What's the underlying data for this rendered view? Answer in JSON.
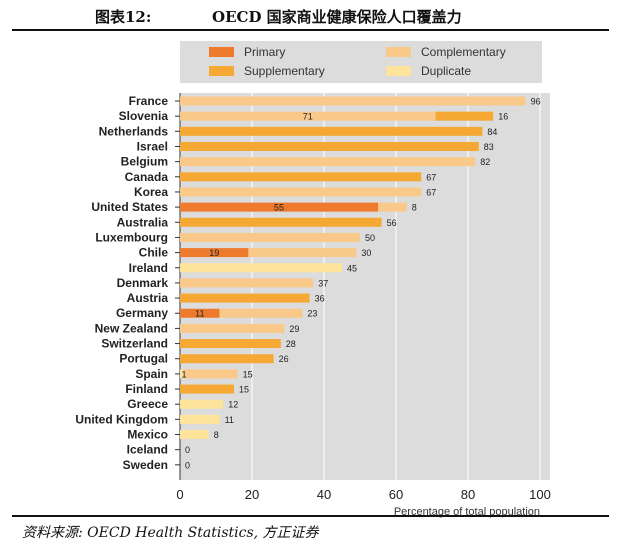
{
  "header": {
    "figure_label": "图表12:",
    "title": "OECD 国家商业健康保险人口覆盖力"
  },
  "footer": {
    "source": "资料来源: OECD Health Statistics, 方正证券"
  },
  "chart_data": {
    "type": "bar",
    "orientation": "horizontal",
    "stacked": true,
    "xlabel": "Percentage of total population",
    "xlim": [
      0,
      100
    ],
    "xticks": [
      0,
      20,
      40,
      60,
      80,
      100
    ],
    "grid": true,
    "legend_position": "top",
    "categories": [
      "France",
      "Slovenia",
      "Netherlands",
      "Israel",
      "Belgium",
      "Canada",
      "Korea",
      "United States",
      "Australia",
      "Luxembourg",
      "Chile",
      "Ireland",
      "Denmark",
      "Austria",
      "Germany",
      "New Zealand",
      "Switzerland",
      "Portugal",
      "Spain",
      "Finland",
      "Greece",
      "United Kingdom",
      "Mexico",
      "Iceland",
      "Sweden"
    ],
    "series": [
      {
        "name": "Primary",
        "color": "#ee7a2e",
        "values": [
          0,
          0,
          0,
          0,
          0,
          0,
          0,
          55,
          0,
          0,
          19,
          0,
          0,
          0,
          11,
          0,
          0,
          0,
          0,
          0,
          0,
          0,
          0,
          0,
          0
        ]
      },
      {
        "name": "Supplementary",
        "color": "#f5a833",
        "values": [
          0,
          16,
          84,
          83,
          0,
          67,
          0,
          0,
          56,
          0,
          0,
          0,
          0,
          36,
          0,
          0,
          28,
          26,
          0,
          15,
          0,
          0,
          0,
          0,
          0
        ]
      },
      {
        "name": "Complementary",
        "color": "#f9c98a",
        "values": [
          96,
          71,
          0,
          0,
          82,
          0,
          67,
          8,
          0,
          50,
          30,
          0,
          37,
          0,
          23,
          29,
          0,
          0,
          15,
          0,
          0,
          0,
          0,
          0,
          0
        ]
      },
      {
        "name": "Duplicate",
        "color": "#fde49a",
        "values": [
          0,
          0,
          0,
          0,
          0,
          0,
          0,
          0,
          0,
          0,
          0,
          45,
          0,
          0,
          0,
          0,
          0,
          0,
          1,
          0,
          12,
          11,
          8,
          0,
          0
        ]
      }
    ],
    "segment_order": [
      [
        "Complementary"
      ],
      [
        "Complementary",
        "Supplementary"
      ],
      [
        "Supplementary"
      ],
      [
        "Supplementary"
      ],
      [
        "Complementary"
      ],
      [
        "Supplementary"
      ],
      [
        "Complementary"
      ],
      [
        "Primary",
        "Complementary"
      ],
      [
        "Supplementary"
      ],
      [
        "Complementary"
      ],
      [
        "Primary",
        "Complementary"
      ],
      [
        "Duplicate"
      ],
      [
        "Complementary"
      ],
      [
        "Supplementary"
      ],
      [
        "Primary",
        "Complementary"
      ],
      [
        "Complementary"
      ],
      [
        "Supplementary"
      ],
      [
        "Supplementary"
      ],
      [
        "Duplicate",
        "Complementary"
      ],
      [
        "Supplementary"
      ],
      [
        "Duplicate"
      ],
      [
        "Duplicate"
      ],
      [
        "Duplicate"
      ],
      [],
      []
    ],
    "bar_labels": [
      {
        "inner": "",
        "end": "96"
      },
      {
        "inner": "71",
        "end": "16"
      },
      {
        "inner": "",
        "end": "84"
      },
      {
        "inner": "",
        "end": "83"
      },
      {
        "inner": "",
        "end": "82"
      },
      {
        "inner": "",
        "end": "67"
      },
      {
        "inner": "",
        "end": "67"
      },
      {
        "inner": "55",
        "end": "8"
      },
      {
        "inner": "",
        "end": "56"
      },
      {
        "inner": "",
        "end": "50"
      },
      {
        "inner": "19",
        "end": "30"
      },
      {
        "inner": "",
        "end": "45"
      },
      {
        "inner": "",
        "end": "37"
      },
      {
        "inner": "",
        "end": "36"
      },
      {
        "inner": "11",
        "end": "23"
      },
      {
        "inner": "",
        "end": "29"
      },
      {
        "inner": "",
        "end": "28"
      },
      {
        "inner": "",
        "end": "26"
      },
      {
        "inner": "1",
        "end": "15"
      },
      {
        "inner": "",
        "end": "15"
      },
      {
        "inner": "",
        "end": "12"
      },
      {
        "inner": "",
        "end": "11"
      },
      {
        "inner": "",
        "end": "8"
      },
      {
        "inner": "",
        "end": "0"
      },
      {
        "inner": "",
        "end": "0"
      }
    ],
    "legend": [
      "Primary",
      "Complementary",
      "Supplementary",
      "Duplicate"
    ]
  }
}
